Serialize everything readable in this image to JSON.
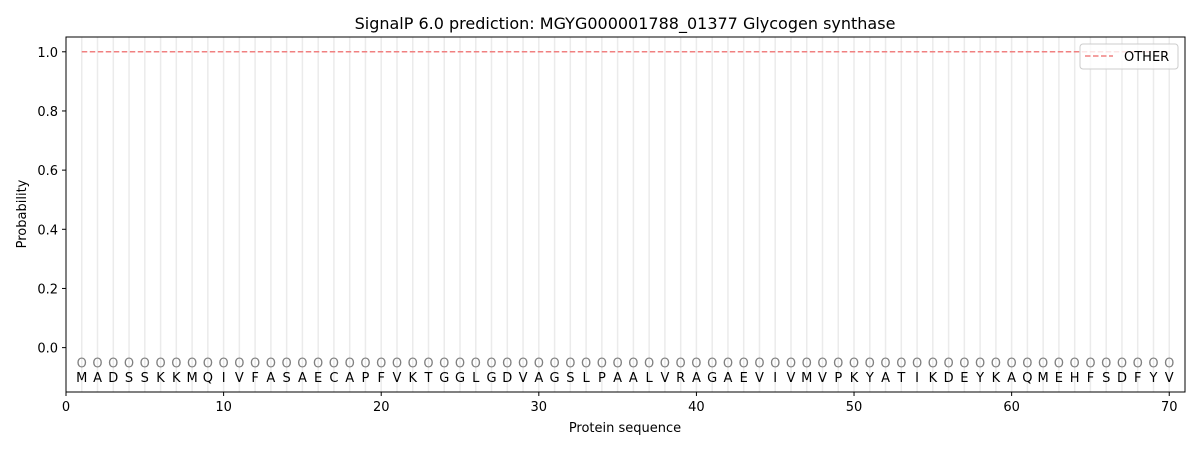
{
  "chart_data": {
    "type": "line",
    "title": "SignalP 6.0 prediction: MGYG000001788_01377 Glycogen synthase",
    "xlabel": "Protein sequence",
    "ylabel": "Probability",
    "xlim": [
      0,
      71
    ],
    "ylim": [
      -0.15,
      1.05
    ],
    "xticks": [
      0,
      10,
      20,
      30,
      40,
      50,
      60,
      70
    ],
    "yticks": [
      0.0,
      0.2,
      0.4,
      0.6,
      0.8,
      1.0
    ],
    "ytick_labels": [
      "0.0",
      "0.2",
      "0.4",
      "0.6",
      "0.8",
      "1.0"
    ],
    "grid": "vertical lines at each residue",
    "legend_position": "top-right",
    "sequence": "MADSSKKMQIVFASAECAPFVKTGGLGDVAGSLPAALVRAGAEVIVMVPKYATIKDEYKAQMEHFSDFYV",
    "position_label": "O",
    "series": [
      {
        "name": "OTHER",
        "color": "#f08080",
        "style": "dashed",
        "x_range": [
          1,
          70
        ],
        "value": 1.0
      }
    ]
  }
}
